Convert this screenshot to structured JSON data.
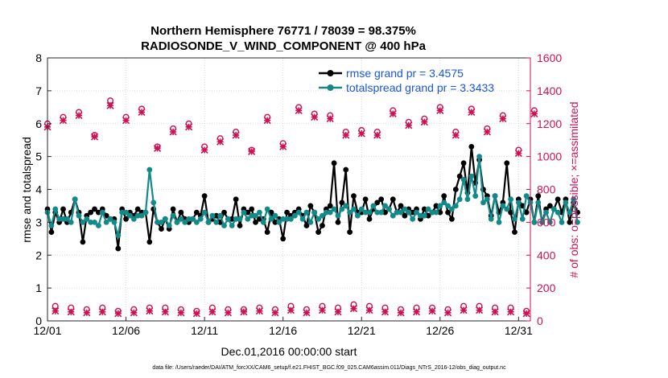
{
  "chart_data": {
    "type": "line",
    "title_line1": "Northern Hemisphere 76771 / 78039 = 98.375%",
    "title_line2": "RADIOSONDE_V_WIND_COMPONENT @ 400 hPa",
    "xlabel": "Dec.01,2016 00:00:00 start",
    "ylabel_left": "rmse and totalspread",
    "ylabel_right": "# of obs: o=possible; ×=assimilated",
    "xlim": [
      1,
      31.75
    ],
    "ylim_left": [
      0,
      8
    ],
    "ylim_right": [
      0,
      1600
    ],
    "x_ticks": [
      1,
      6,
      11,
      16,
      21,
      26,
      31
    ],
    "x_tick_labels": [
      "12/01",
      "12/06",
      "12/11",
      "12/16",
      "12/21",
      "12/26",
      "12/31"
    ],
    "y_left_ticks": [
      "0",
      "1",
      "2",
      "3",
      "4",
      "5",
      "6",
      "7",
      "8"
    ],
    "y_right_ticks": [
      "0",
      "200",
      "400",
      "600",
      "800",
      "1000",
      "1200",
      "1400",
      "1600"
    ],
    "grid": true,
    "legend_position": "top-right",
    "series": [
      {
        "name": "rmse grand pr = 3.4575",
        "axis": "left",
        "color": "#000000",
        "marker": "filled-circle",
        "x_start": 1,
        "x_step": 0.25,
        "values": [
          3.4,
          2.7,
          3.3,
          3.0,
          3.4,
          3.0,
          3.3,
          3.7,
          3.3,
          2.4,
          3.2,
          3.3,
          3.4,
          3.3,
          3.4,
          3.2,
          3.1,
          3.1,
          2.2,
          3.4,
          3.1,
          3.3,
          3.2,
          3.4,
          3.3,
          3.3,
          2.4,
          3.4,
          3.0,
          2.8,
          3.1,
          2.8,
          3.4,
          3.0,
          3.3,
          3.1,
          3.0,
          3.1,
          3.3,
          3.2,
          3.8,
          3.0,
          3.1,
          3.2,
          3.0,
          3.3,
          3.1,
          3.1,
          3.7,
          2.9,
          3.4,
          3.3,
          3.4,
          3.0,
          3.1,
          3.1,
          2.7,
          3.3,
          3.0,
          3.1,
          2.5,
          3.3,
          3.2,
          3.3,
          3.4,
          3.2,
          2.9,
          3.5,
          3.3,
          2.7,
          2.9,
          3.4,
          3.5,
          4.8,
          3.0,
          3.6,
          4.6,
          2.7,
          3.8,
          3.3,
          3.3,
          3.7,
          3.1,
          3.4,
          3.6,
          3.7,
          3.3,
          3.4,
          3.7,
          3.3,
          3.5,
          3.2,
          3.4,
          3.3,
          3.4,
          3.1,
          3.4,
          3.2,
          3.3,
          3.5,
          3.3,
          3.8,
          3.3,
          3.1,
          4.0,
          4.4,
          4.8,
          3.9,
          5.3,
          4.2,
          4.9,
          4.0,
          3.8,
          3.2,
          3.8,
          3.3,
          3.6,
          4.8,
          3.3,
          2.7,
          3.7,
          3.5,
          3.3,
          3.7,
          3.0,
          3.8,
          3.0,
          3.4,
          3.5,
          3.4,
          3.7,
          3.3,
          3.7,
          3.0,
          3.6,
          3.3
        ]
      },
      {
        "name": "totalspread grand pr = 3.3433",
        "axis": "left",
        "color": "#138a8a",
        "marker": "filled-circle",
        "x_start": 1,
        "x_step": 0.25,
        "values": [
          3.3,
          2.9,
          3.4,
          3.1,
          3.1,
          3.1,
          3.0,
          3.7,
          3.2,
          3.0,
          3.1,
          3.0,
          3.0,
          2.9,
          3.3,
          3.0,
          3.1,
          3.0,
          2.6,
          3.3,
          3.3,
          3.2,
          3.1,
          3.2,
          3.2,
          3.3,
          4.6,
          3.6,
          3.0,
          3.0,
          3.1,
          2.9,
          3.2,
          3.0,
          3.1,
          3.0,
          3.1,
          3.1,
          3.0,
          3.1,
          3.3,
          3.0,
          3.2,
          3.0,
          3.2,
          2.9,
          3.1,
          2.9,
          3.1,
          3.1,
          3.3,
          3.1,
          3.2,
          3.2,
          3.3,
          3.0,
          3.4,
          3.1,
          3.2,
          3.0,
          3.1,
          3.1,
          3.1,
          3.2,
          3.3,
          3.1,
          3.3,
          3.0,
          3.3,
          3.1,
          3.2,
          3.3,
          3.3,
          3.4,
          3.2,
          3.4,
          3.5,
          3.3,
          3.4,
          3.2,
          3.4,
          3.3,
          3.3,
          3.5,
          3.3,
          3.3,
          3.5,
          3.4,
          3.2,
          3.3,
          3.3,
          3.4,
          3.3,
          3.1,
          3.3,
          3.2,
          3.2,
          3.4,
          3.3,
          3.3,
          3.5,
          3.6,
          3.5,
          3.4,
          3.5,
          3.7,
          4.3,
          3.7,
          4.4,
          3.8,
          5.0,
          3.6,
          3.7,
          3.1,
          3.8,
          3.0,
          3.5,
          3.4,
          3.7,
          3.1,
          3.6,
          3.1,
          3.8,
          3.6,
          3.0,
          3.6,
          3.0,
          3.3,
          3.0,
          3.4,
          3.3,
          3.0,
          3.6,
          3.3,
          3.7,
          3.0
        ]
      },
      {
        "name": "possible",
        "axis": "right",
        "color": "#cc1155",
        "marker": "open-circle",
        "x_start": 1,
        "x_step": 0.5,
        "values": [
          1200,
          90,
          1240,
          80,
          1270,
          70,
          1130,
          80,
          1340,
          60,
          1240,
          70,
          1290,
          80,
          1060,
          80,
          1170,
          70,
          1200,
          60,
          1060,
          80,
          1110,
          70,
          1150,
          70,
          1040,
          80,
          1240,
          70,
          1080,
          90,
          1300,
          70,
          1260,
          90,
          1250,
          80,
          1150,
          100,
          1160,
          90,
          1150,
          80,
          1280,
          70,
          1210,
          80,
          1230,
          80,
          1300,
          70,
          1150,
          90,
          1290,
          90,
          1170,
          80,
          1250,
          80,
          1040,
          60,
          1280
        ]
      },
      {
        "name": "assimilated",
        "axis": "right",
        "color": "#cc1155",
        "marker": "cross",
        "x_start": 1,
        "x_step": 0.5,
        "values": [
          1180,
          60,
          1220,
          55,
          1250,
          50,
          1120,
          55,
          1310,
          45,
          1220,
          50,
          1270,
          60,
          1050,
          55,
          1150,
          50,
          1180,
          45,
          1040,
          55,
          1090,
          50,
          1130,
          55,
          1030,
          60,
          1220,
          50,
          1060,
          65,
          1280,
          50,
          1240,
          65,
          1230,
          55,
          1130,
          75,
          1140,
          65,
          1130,
          55,
          1260,
          50,
          1190,
          55,
          1210,
          60,
          1280,
          50,
          1130,
          65,
          1270,
          65,
          1150,
          55,
          1230,
          55,
          1020,
          45,
          1260
        ]
      }
    ]
  },
  "footnote": "data file: /Users/raeder/DAI/ATM_forcXX/CAM6_setup/f.e21.FHIST_BGC.f09_025.CAM6assim.011/Diags_NTrS_2016-12/obs_diag_output.nc"
}
